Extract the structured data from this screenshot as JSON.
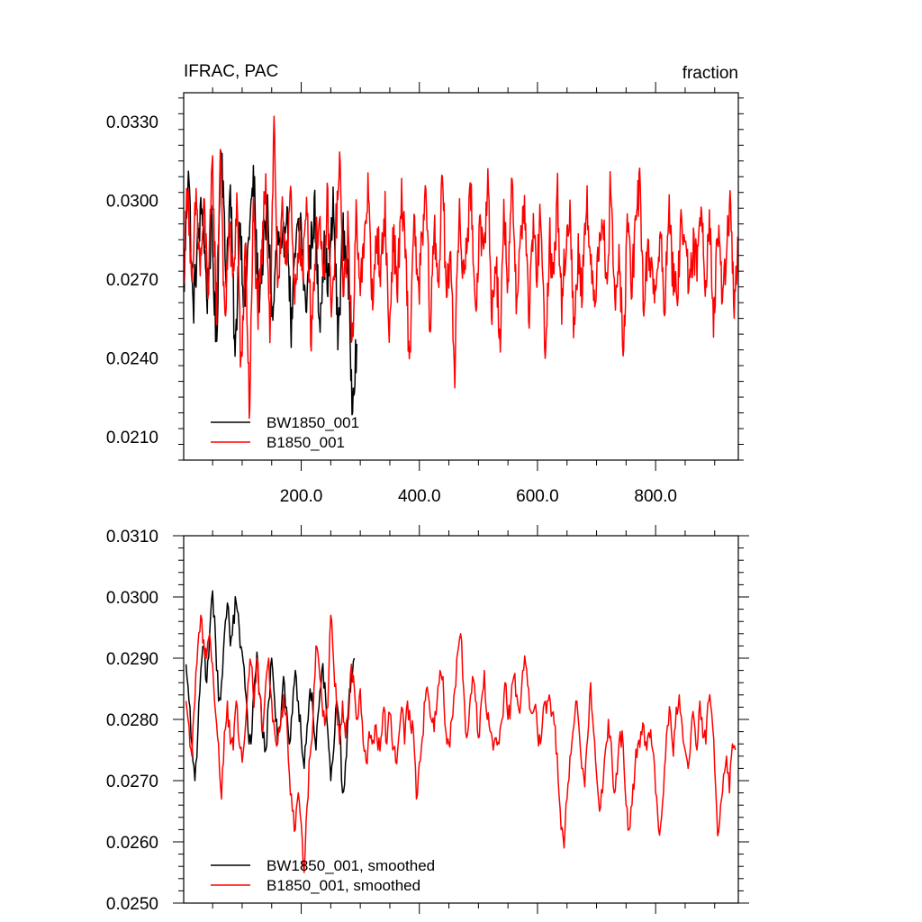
{
  "chart_data": [
    {
      "type": "line",
      "title": "IFRAC, PAC",
      "units": "fraction",
      "xlim": [
        1,
        940
      ],
      "ylim": [
        0.0201,
        0.0341
      ],
      "x_ticks": [
        200,
        400,
        600,
        800
      ],
      "x_tick_labels": [
        "200.0",
        "400.0",
        "600.0",
        "800.0"
      ],
      "y_ticks": [
        0.021,
        0.024,
        0.027,
        0.03,
        0.033
      ],
      "y_tick_labels": [
        "0.0210",
        "0.0240",
        "0.0270",
        "0.0300",
        "0.0330"
      ],
      "legend_location": "bottom-left",
      "series": [
        {
          "name": "BW1850_001",
          "color": "#000000",
          "x_start": 1,
          "x_end": 294,
          "mean": 0.0283,
          "values": [
            0.0264,
            0.0316,
            0.0257,
            0.0284,
            0.0299,
            0.0262,
            0.0291,
            0.0241,
            0.0329,
            0.0271,
            0.0304,
            0.0237,
            0.0295,
            0.0258,
            0.0289,
            0.0308,
            0.0262,
            0.0281,
            0.0296,
            0.0252,
            0.0287,
            0.0275,
            0.0301,
            0.0249,
            0.0283,
            0.0293,
            0.0258,
            0.0279,
            0.0297,
            0.0254,
            0.0281,
            0.0268,
            0.0299,
            0.0246,
            0.0288,
            0.0276,
            0.0225,
            0.0246
          ]
        },
        {
          "name": "B1850_001",
          "color": "#ff0000",
          "x_start": 1,
          "x_end": 940,
          "mean": 0.0277,
          "values": [
            0.0272,
            0.0309,
            0.0261,
            0.0302,
            0.0273,
            0.0296,
            0.0265,
            0.0314,
            0.0257,
            0.0324,
            0.0248,
            0.0292,
            0.0268,
            0.0301,
            0.0229,
            0.0287,
            0.0218,
            0.0298,
            0.0255,
            0.0277,
            0.0311,
            0.0249,
            0.0331,
            0.0262,
            0.0293,
            0.0281,
            0.0302,
            0.0259,
            0.0287,
            0.0271,
            0.0304,
            0.0248,
            0.0279,
            0.0296,
            0.0264,
            0.0301,
            0.0253,
            0.0288,
            0.0313,
            0.0262,
            0.0291,
            0.0239,
            0.0297,
            0.0268,
            0.0282,
            0.0307,
            0.0255,
            0.0289,
            0.0272,
            0.0298,
            0.0246,
            0.0288,
            0.0266,
            0.0301,
            0.0279,
            0.0235,
            0.0297,
            0.0261,
            0.0284,
            0.0303,
            0.0249,
            0.0291,
            0.0268,
            0.0309,
            0.0262,
            0.0282,
            0.0234,
            0.0296,
            0.0271,
            0.0287,
            0.0302,
            0.0258,
            0.0289,
            0.0276,
            0.0312,
            0.0254,
            0.0281,
            0.0243,
            0.0298,
            0.0266,
            0.0309,
            0.0262,
            0.0284,
            0.0301,
            0.0253,
            0.0289,
            0.0272,
            0.0298,
            0.0231,
            0.0287,
            0.0269,
            0.0303,
            0.0259,
            0.0283,
            0.0297,
            0.0248,
            0.0281,
            0.0266,
            0.0305,
            0.0273,
            0.0262,
            0.0284,
            0.0297,
            0.0263,
            0.0312,
            0.0255,
            0.0283,
            0.0236,
            0.0295,
            0.0268,
            0.0287,
            0.0309,
            0.0258,
            0.0282,
            0.0274,
            0.0262,
            0.0291,
            0.0253,
            0.0301,
            0.0272,
            0.0262,
            0.0288,
            0.0293,
            0.0261,
            0.0282,
            0.0275,
            0.0302,
            0.0268,
            0.0296,
            0.0251,
            0.0288,
            0.0265,
            0.0278,
            0.0298,
            0.0258,
            0.0284
          ]
        }
      ]
    },
    {
      "type": "line",
      "title": "",
      "units": "",
      "xlim": [
        1,
        940
      ],
      "ylim": [
        0.025,
        0.031
      ],
      "x_ticks": [
        200,
        400,
        600,
        800
      ],
      "x_tick_labels": [],
      "y_ticks": [
        0.025,
        0.026,
        0.027,
        0.028,
        0.029,
        0.03,
        0.031
      ],
      "y_tick_labels": [
        "0.0250",
        "0.0260",
        "0.0270",
        "0.0280",
        "0.0290",
        "0.0300",
        "0.0310"
      ],
      "legend_location": "bottom-left",
      "series": [
        {
          "name": "BW1850_001, smoothed",
          "color": "#000000",
          "x": [
            5,
            10,
            15,
            20,
            25,
            30,
            35,
            40,
            45,
            50,
            55,
            60,
            65,
            70,
            75,
            80,
            85,
            90,
            95,
            100,
            105,
            110,
            115,
            120,
            125,
            130,
            135,
            140,
            145,
            150,
            155,
            160,
            165,
            170,
            175,
            180,
            185,
            190,
            195,
            200,
            205,
            210,
            215,
            220,
            225,
            230,
            235,
            240,
            245,
            250,
            255,
            260,
            265,
            270,
            275,
            280,
            285,
            290
          ],
          "values": [
            0.0289,
            0.0283,
            0.0276,
            0.027,
            0.0278,
            0.0288,
            0.0292,
            0.0286,
            0.0294,
            0.0301,
            0.0293,
            0.0283,
            0.0286,
            0.0294,
            0.0299,
            0.0292,
            0.0297,
            0.0299,
            0.0295,
            0.0291,
            0.0285,
            0.0278,
            0.0276,
            0.0285,
            0.0291,
            0.0284,
            0.0277,
            0.0275,
            0.0283,
            0.029,
            0.0283,
            0.0276,
            0.0279,
            0.0287,
            0.0282,
            0.0276,
            0.0281,
            0.0288,
            0.0283,
            0.0277,
            0.0272,
            0.0279,
            0.0285,
            0.0281,
            0.0275,
            0.0282,
            0.0288,
            0.0286,
            0.0278,
            0.027,
            0.0275,
            0.0283,
            0.0279,
            0.0268,
            0.0273,
            0.0282,
            0.0288,
            0.029
          ]
        },
        {
          "name": "B1850_001, smoothed",
          "color": "#ff0000",
          "x": [
            5,
            10,
            15,
            20,
            25,
            30,
            35,
            40,
            45,
            50,
            55,
            60,
            65,
            70,
            75,
            80,
            85,
            90,
            95,
            100,
            105,
            110,
            115,
            120,
            125,
            130,
            135,
            140,
            145,
            150,
            155,
            160,
            165,
            170,
            175,
            180,
            185,
            190,
            195,
            200,
            205,
            210,
            215,
            220,
            225,
            230,
            235,
            240,
            245,
            250,
            255,
            260,
            265,
            270,
            275,
            280,
            285,
            290,
            295,
            300,
            305,
            310,
            315,
            320,
            325,
            330,
            335,
            340,
            345,
            350,
            355,
            360,
            365,
            370,
            375,
            380,
            385,
            390,
            395,
            400,
            405,
            410,
            415,
            420,
            425,
            430,
            435,
            440,
            445,
            450,
            455,
            460,
            465,
            470,
            475,
            480,
            485,
            490,
            495,
            500,
            505,
            510,
            515,
            520,
            525,
            530,
            535,
            540,
            545,
            550,
            555,
            560,
            565,
            570,
            575,
            580,
            585,
            590,
            595,
            600,
            605,
            610,
            615,
            620,
            625,
            630,
            635,
            640,
            645,
            650,
            655,
            660,
            665,
            670,
            675,
            680,
            685,
            690,
            695,
            700,
            705,
            710,
            715,
            720,
            725,
            730,
            735,
            740,
            745,
            750,
            755,
            760,
            765,
            770,
            775,
            780,
            785,
            790,
            795,
            800,
            805,
            810,
            815,
            820,
            825,
            830,
            835,
            840,
            845,
            850,
            855,
            860,
            865,
            870,
            875,
            880,
            885,
            890,
            895,
            900,
            905,
            910,
            915,
            920,
            925,
            930,
            935
          ],
          "values": [
            0.0283,
            0.0279,
            0.0274,
            0.0283,
            0.0292,
            0.0297,
            0.0293,
            0.029,
            0.0294,
            0.0289,
            0.0281,
            0.0276,
            0.0267,
            0.0278,
            0.0283,
            0.0276,
            0.0275,
            0.0283,
            0.0276,
            0.0273,
            0.0278,
            0.0286,
            0.0289,
            0.0282,
            0.029,
            0.0284,
            0.0278,
            0.0286,
            0.029,
            0.0283,
            0.0278,
            0.0276,
            0.0279,
            0.0284,
            0.0281,
            0.0271,
            0.0265,
            0.0262,
            0.0268,
            0.0263,
            0.0255,
            0.0266,
            0.0274,
            0.028,
            0.0292,
            0.0289,
            0.0283,
            0.0279,
            0.0282,
            0.0297,
            0.0289,
            0.0282,
            0.0276,
            0.0283,
            0.0277,
            0.028,
            0.0289,
            0.0285,
            0.028,
            0.0285,
            0.0276,
            0.0273,
            0.0278,
            0.0276,
            0.0279,
            0.0275,
            0.0277,
            0.0282,
            0.0276,
            0.0281,
            0.0275,
            0.0273,
            0.0277,
            0.0282,
            0.0276,
            0.0283,
            0.0279,
            0.0278,
            0.0267,
            0.0273,
            0.0277,
            0.0283,
            0.0284,
            0.028,
            0.0278,
            0.0283,
            0.0288,
            0.0287,
            0.0278,
            0.0276,
            0.028,
            0.0285,
            0.0291,
            0.0294,
            0.0285,
            0.0277,
            0.0282,
            0.0287,
            0.0283,
            0.0277,
            0.0283,
            0.0288,
            0.028,
            0.0278,
            0.0275,
            0.0277,
            0.0276,
            0.028,
            0.0286,
            0.028,
            0.0283,
            0.0287,
            0.0284,
            0.0281,
            0.0288,
            0.0289,
            0.0285,
            0.0281,
            0.0282,
            0.0278,
            0.0276,
            0.0282,
            0.0281,
            0.0284,
            0.0281,
            0.0279,
            0.027,
            0.0262,
            0.0259,
            0.0267,
            0.0274,
            0.0278,
            0.0283,
            0.0279,
            0.0272,
            0.0269,
            0.0277,
            0.0286,
            0.0278,
            0.0271,
            0.0265,
            0.0268,
            0.0275,
            0.028,
            0.0276,
            0.0268,
            0.0271,
            0.0278,
            0.0276,
            0.0266,
            0.0262,
            0.0266,
            0.0272,
            0.0276,
            0.0278,
            0.0279,
            0.0275,
            0.0277,
            0.0275,
            0.0268,
            0.0262,
            0.0264,
            0.0272,
            0.0279,
            0.0281,
            0.0274,
            0.0282,
            0.0284,
            0.0279,
            0.0275,
            0.0272,
            0.0278,
            0.028,
            0.0275,
            0.0283,
            0.0277,
            0.0276,
            0.0283,
            0.0281,
            0.0272,
            0.0261,
            0.0266,
            0.0271,
            0.0274,
            0.0268,
            0.0276,
            0.0275
          ]
        }
      ]
    }
  ]
}
